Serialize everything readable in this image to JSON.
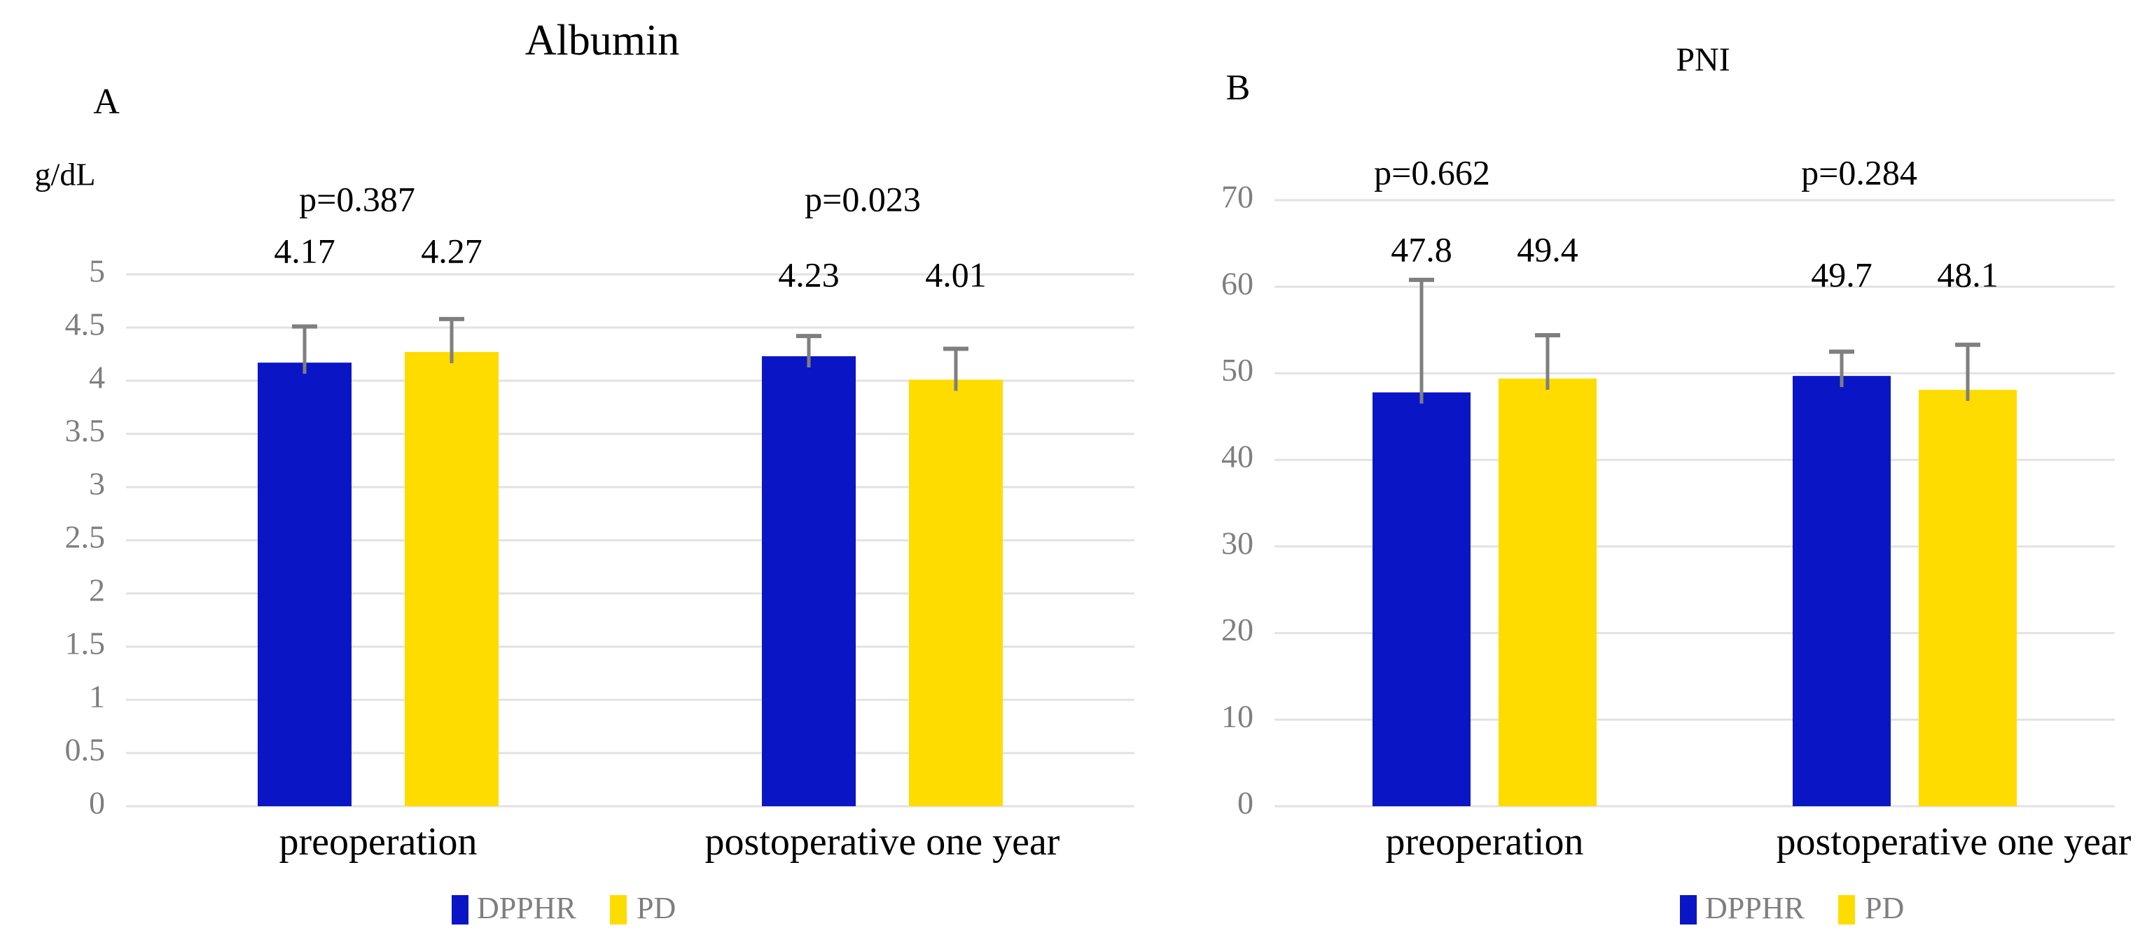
{
  "colors": {
    "dpphr_blue": "#0a16c5",
    "pd_yellow": "#ffdc00",
    "error_bar_gray": "#7f7f7f",
    "axis_text_gray": "#7f7f7f",
    "gridline_gray": "#e2e2e2",
    "label_black": "#000000",
    "background": "#ffffff"
  },
  "chart_data": [
    {
      "type": "bar",
      "panel_letter": "A",
      "title": "Albumin",
      "y_unit": "g/dL",
      "categories": [
        "preoperation",
        "postoperative one year"
      ],
      "series": [
        {
          "name": "DPPHR",
          "color_key": "dpphr_blue",
          "values": [
            4.17,
            4.23
          ],
          "errors_plus": [
            0.34,
            0.19
          ],
          "value_labels": [
            "4.17",
            "4.23"
          ]
        },
        {
          "name": "PD",
          "color_key": "pd_yellow",
          "values": [
            4.27,
            4.01
          ],
          "errors_plus": [
            0.31,
            0.29
          ],
          "value_labels": [
            "4.27",
            "4.01"
          ]
        }
      ],
      "p_values": [
        "p=0.387",
        "p=0.023"
      ],
      "ylim": [
        0,
        5
      ],
      "ytick_step": 0.5,
      "ytick_labels": [
        "0",
        "0.5",
        "1",
        "1.5",
        "2",
        "2.5",
        "3",
        "3.5",
        "4",
        "4.5",
        "5"
      ],
      "grid": true,
      "legend_position": "bottom"
    },
    {
      "type": "bar",
      "panel_letter": "B",
      "title": "PNI",
      "y_unit": "",
      "categories": [
        "preoperation",
        "postoperative one year"
      ],
      "series": [
        {
          "name": "DPPHR",
          "color_key": "dpphr_blue",
          "values": [
            47.8,
            49.7
          ],
          "errors_plus": [
            13.0,
            2.8
          ],
          "value_labels": [
            "47.8",
            "49.7"
          ]
        },
        {
          "name": "PD",
          "color_key": "pd_yellow",
          "values": [
            49.4,
            48.1
          ],
          "errors_plus": [
            5.0,
            5.2
          ],
          "value_labels": [
            "49.4",
            "48.1"
          ]
        }
      ],
      "p_values": [
        "p=0.662",
        "p=0.284"
      ],
      "ylim": [
        0,
        70
      ],
      "ytick_step": 10,
      "ytick_labels": [
        "0",
        "10",
        "20",
        "30",
        "40",
        "50",
        "60",
        "70"
      ],
      "grid": true,
      "legend_position": "bottom"
    }
  ]
}
